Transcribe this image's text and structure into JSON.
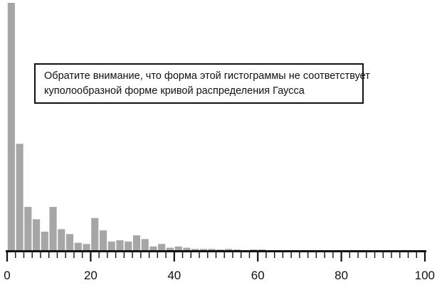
{
  "chart_data": {
    "type": "bar",
    "title": "",
    "xlabel": "",
    "ylabel": "",
    "xlim": [
      0,
      100
    ],
    "bin_width": 2,
    "x_ticks": [
      0,
      20,
      40,
      60,
      80,
      100
    ],
    "x_tick_labels": [
      "0",
      "20",
      "40",
      "60",
      "80",
      "100"
    ],
    "grid": false,
    "legend": "none",
    "bar_color": "#a6a6a6",
    "axis_color": "#111111",
    "bins_start": [
      0,
      2,
      4,
      6,
      8,
      10,
      12,
      14,
      16,
      18,
      20,
      22,
      24,
      26,
      28,
      30,
      32,
      34,
      36,
      38,
      40,
      42,
      44,
      46,
      48,
      50,
      52,
      54,
      56,
      58,
      60
    ],
    "values": [
      100,
      43,
      17.5,
      12.5,
      7.5,
      17.5,
      8.5,
      6.5,
      3,
      2.5,
      13,
      8,
      3.5,
      4,
      3.5,
      6,
      4.5,
      1.5,
      2.5,
      1,
      1.5,
      1,
      0.5,
      0.5,
      0.5,
      0.3,
      0.5,
      0.3,
      0,
      0.3,
      0.3
    ]
  },
  "annotation": {
    "line1": "Обратите внимание, что форма этой гистограммы не соответствует",
    "line2": "куполообразной форме кривой распределения Гаусса"
  }
}
